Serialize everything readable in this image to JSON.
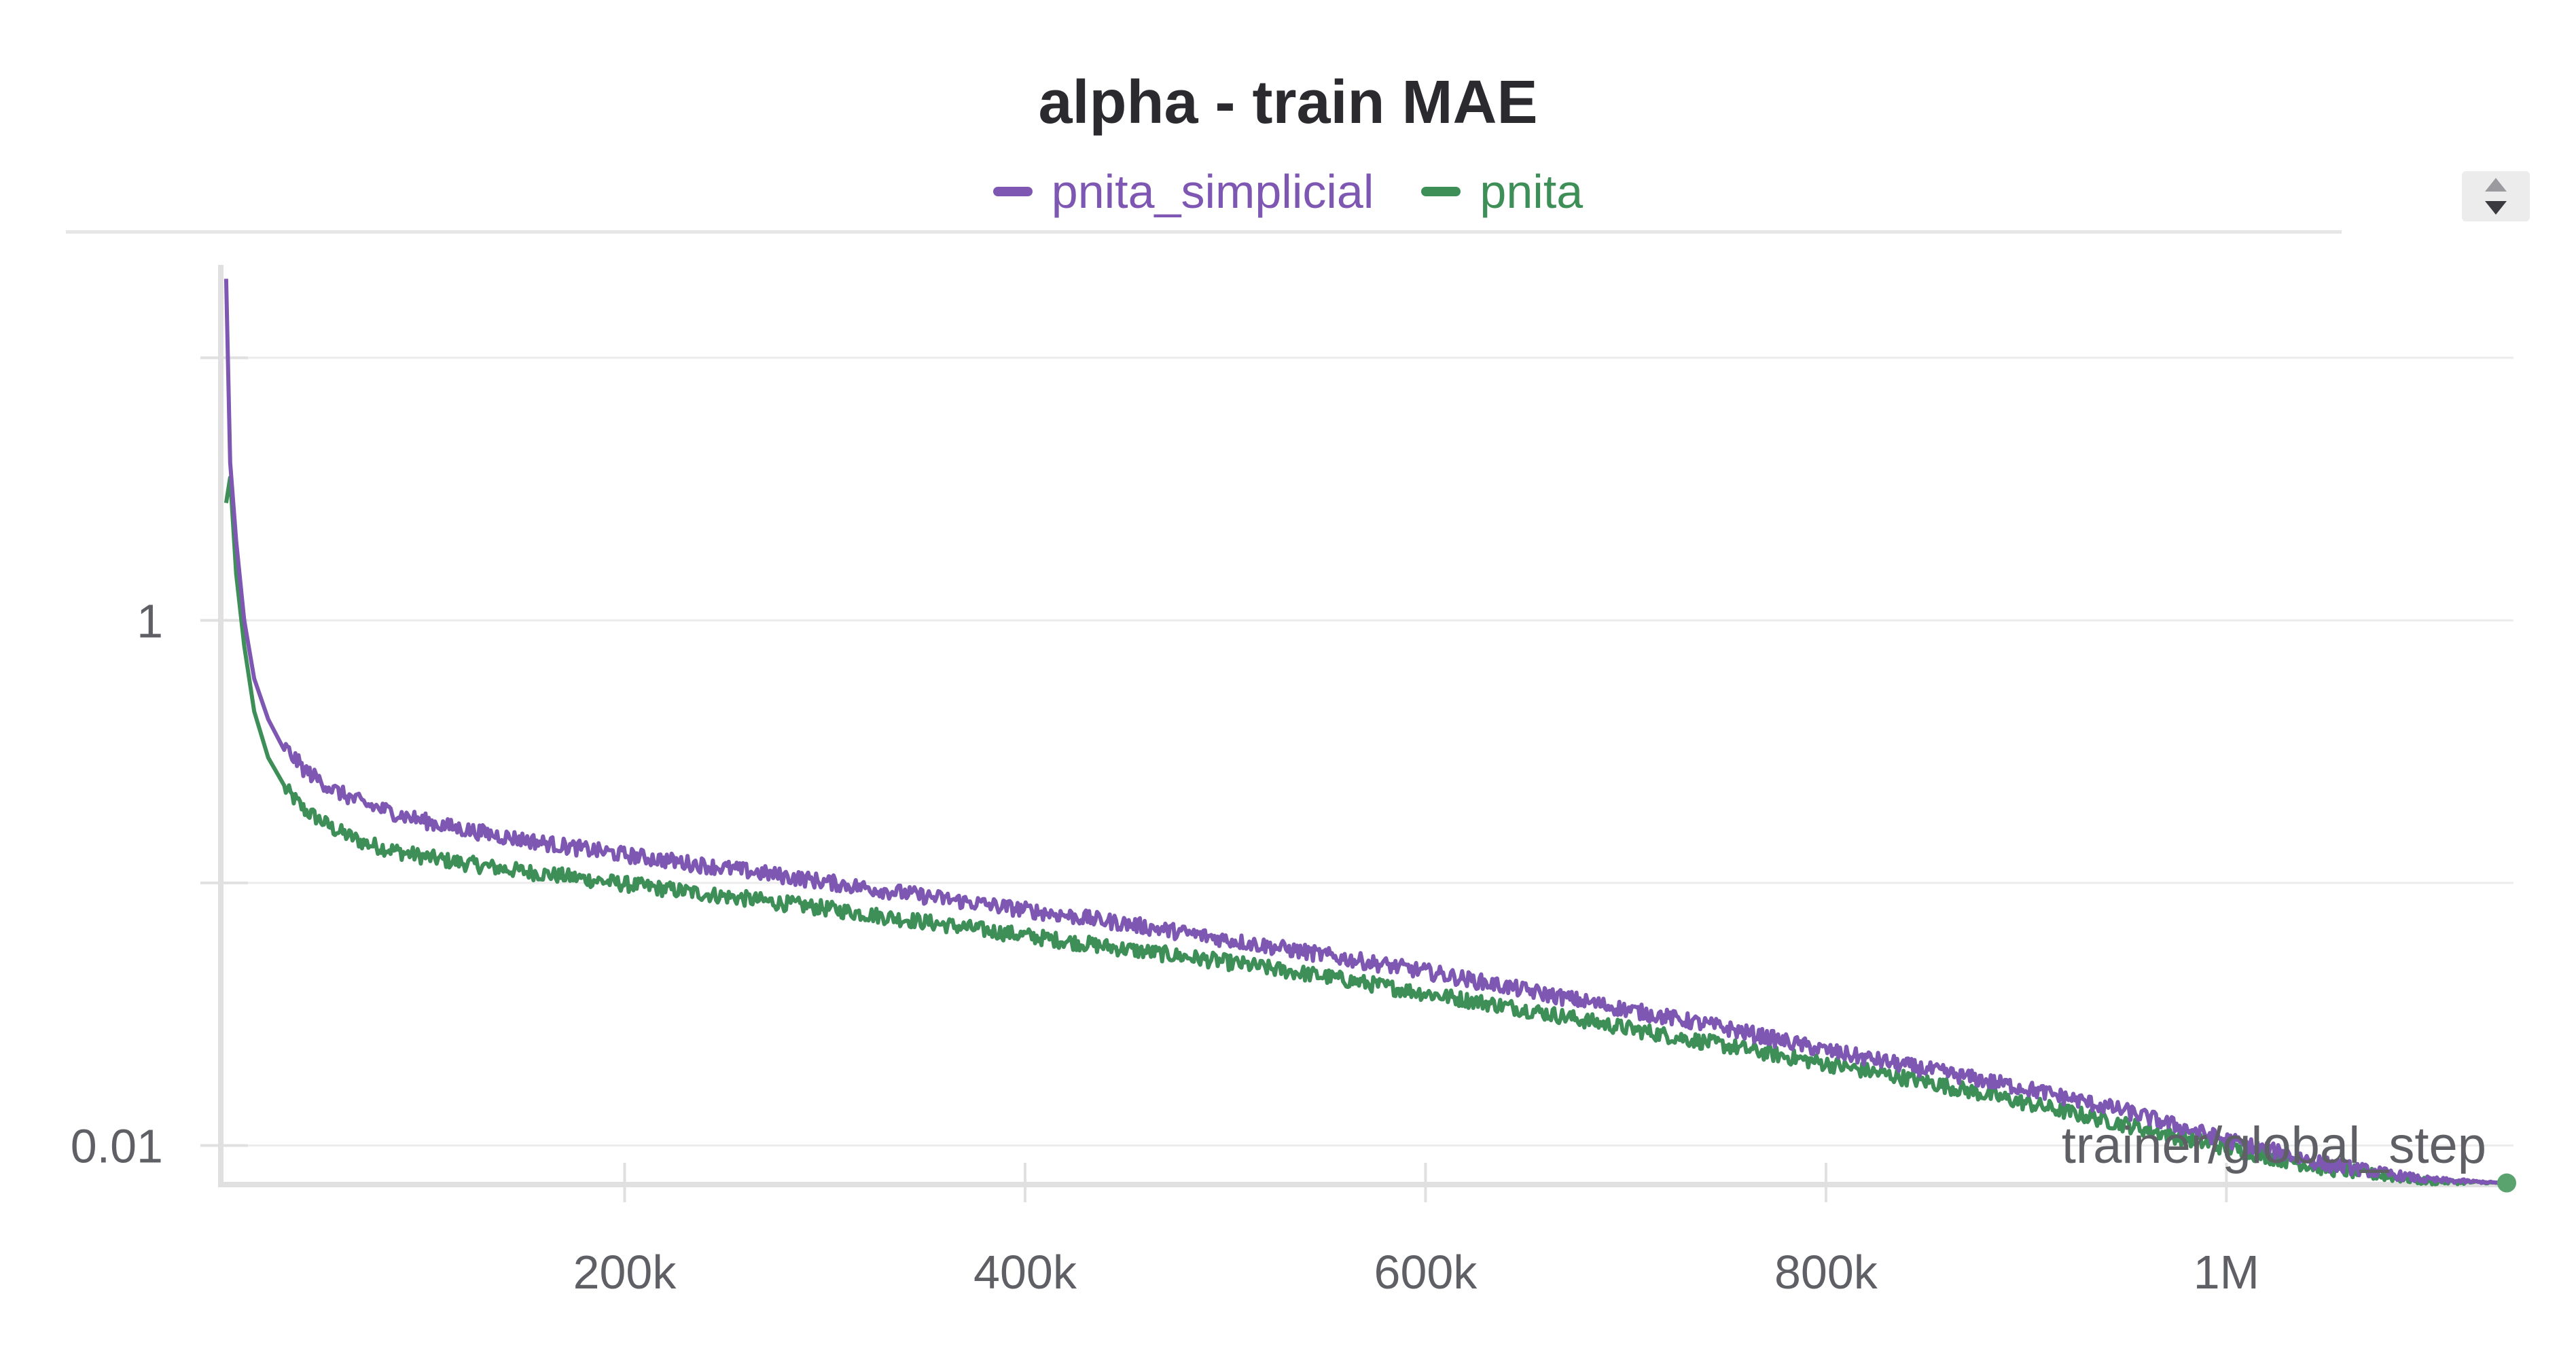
{
  "chart_data": {
    "type": "line",
    "title": "alpha - train MAE",
    "xlabel": "trainer/global_step",
    "ylabel": "",
    "y_scale": "log",
    "xlim": [
      0,
      1140000
    ],
    "ylim": [
      0.0071,
      27
    ],
    "grid": true,
    "legend_position": "top-center",
    "x_ticks": [
      {
        "value": 200000,
        "label": "200k"
      },
      {
        "value": 400000,
        "label": "400k"
      },
      {
        "value": 600000,
        "label": "600k"
      },
      {
        "value": 800000,
        "label": "800k"
      },
      {
        "value": 1000000,
        "label": "1M"
      }
    ],
    "y_ticks": [
      {
        "value": 0.01,
        "label": "0.01"
      },
      {
        "value": 0.1,
        "label": ""
      },
      {
        "value": 1,
        "label": "1"
      },
      {
        "value": 10,
        "label": ""
      }
    ],
    "series": [
      {
        "name": "pnita_simplicial",
        "color": "#7e57b3",
        "x": [
          1000,
          3000,
          6000,
          10000,
          15000,
          22000,
          30000,
          40000,
          55000,
          70000,
          90000,
          110000,
          140000,
          170000,
          200000,
          250000,
          300000,
          350000,
          400000,
          450000,
          500000,
          550000,
          600000,
          650000,
          700000,
          750000,
          800000,
          850000,
          900000,
          950000,
          1000000,
          1050000,
          1100000,
          1140000
        ],
        "y": [
          20,
          4,
          2.0,
          1.0,
          0.6,
          0.42,
          0.33,
          0.27,
          0.225,
          0.2,
          0.18,
          0.165,
          0.15,
          0.138,
          0.128,
          0.114,
          0.101,
          0.089,
          0.079,
          0.07,
          0.061,
          0.053,
          0.046,
          0.039,
          0.033,
          0.028,
          0.023,
          0.0195,
          0.0165,
          0.0135,
          0.0105,
          0.0085,
          0.0074,
          0.0072
        ]
      },
      {
        "name": "pnita",
        "color": "#3d8f57",
        "x": [
          1000,
          3000,
          6000,
          10000,
          15000,
          22000,
          30000,
          40000,
          55000,
          70000,
          90000,
          110000,
          140000,
          170000,
          200000,
          250000,
          300000,
          350000,
          400000,
          450000,
          500000,
          550000,
          600000,
          650000,
          700000,
          750000,
          800000,
          850000,
          900000,
          950000,
          1000000,
          1050000,
          1100000,
          1140000
        ],
        "y": [
          2.8,
          3.5,
          1.5,
          0.8,
          0.45,
          0.3,
          0.23,
          0.19,
          0.16,
          0.142,
          0.13,
          0.122,
          0.113,
          0.106,
          0.099,
          0.089,
          0.08,
          0.071,
          0.063,
          0.056,
          0.05,
          0.044,
          0.038,
          0.033,
          0.028,
          0.024,
          0.0205,
          0.0175,
          0.0145,
          0.012,
          0.0098,
          0.0082,
          0.0073,
          0.0072
        ]
      }
    ]
  },
  "icons": {
    "scroll_control": "up-down-arrows-icon"
  }
}
